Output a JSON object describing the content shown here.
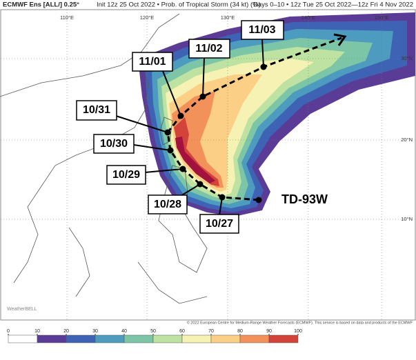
{
  "header": {
    "title": "ECMWF Ens [ALL/] 0.25°",
    "subtitle": "Init 12z 25 Oct 2022 • Prob. of Tropical Storm (34 kt) (%)",
    "valid": "Days 0–10 • 12z Tue 25 Oct 2022—12z Fri 4 Nov 2022"
  },
  "lon_labels": [
    "110°E",
    "120°E",
    "130°E",
    "140°E",
    "150°E"
  ],
  "lat_labels": [
    "30°N",
    "20°N",
    "10°N"
  ],
  "track_labels": [
    "10/27",
    "10/28",
    "10/29",
    "10/30",
    "10/31",
    "11/01",
    "11/02",
    "11/03"
  ],
  "storm_label": "TD-93W",
  "copyright": "© 2022 European Centre for Medium-Range Weather Forecasts (ECMWF). This service is based on data and products of the ECMWF",
  "watermark": "WeatherBELL",
  "colorbar": {
    "ticks": [
      0,
      10,
      20,
      30,
      40,
      50,
      60,
      70,
      80,
      90,
      100
    ],
    "colors": [
      "#ffffff",
      "#5a3c97",
      "#3e63b5",
      "#4d9cbf",
      "#7cc5a6",
      "#bde2a2",
      "#f5f2b4",
      "#fbcf86",
      "#f2925a",
      "#d2443a",
      "#a3123f"
    ]
  }
}
